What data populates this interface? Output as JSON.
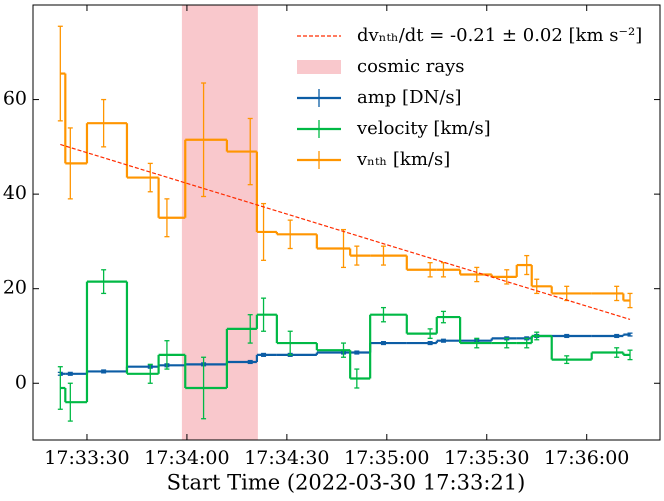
{
  "chart_data": {
    "type": "step",
    "xlabel": "Start Time (2022-03-30 17:33:21)",
    "xlim": [
      -7.2,
      181
    ],
    "xticks": [
      {
        "value": 9,
        "label": "17:33:30"
      },
      {
        "value": 39,
        "label": "17:34:00"
      },
      {
        "value": 69,
        "label": "17:34:30"
      },
      {
        "value": 99,
        "label": "17:35:00"
      },
      {
        "value": 129,
        "label": "17:35:30"
      },
      {
        "value": 159,
        "label": "17:36:00"
      }
    ],
    "ylim": [
      -12,
      80
    ],
    "yticks": [
      0,
      20,
      40,
      60
    ],
    "legend": "upper right",
    "x": [
      1,
      4,
      14,
      28,
      33,
      44,
      58,
      62,
      70,
      86,
      90,
      98,
      112,
      116,
      126,
      135,
      141,
      144,
      153,
      168,
      172
    ],
    "fit": {
      "label": "dvₙₜₕ/dt = -0.21 ± 0.02 [km s⁻²]",
      "color": "#ff2c00",
      "x": [
        1,
        172
      ],
      "y": [
        50.5,
        13.5
      ]
    },
    "span": {
      "label": "cosmic rays",
      "color": "#f7b6bb",
      "x": [
        37.5,
        60.3
      ]
    },
    "series": [
      {
        "name": "amp [DN/s]",
        "color": "#0c5da5",
        "values": [
          2,
          2,
          2.5,
          3.5,
          3.8,
          4,
          4.5,
          6,
          6,
          6.5,
          6.5,
          8.5,
          8.5,
          9,
          9,
          9.5,
          9.5,
          10,
          10,
          10,
          10.3
        ],
        "errors": [
          0.3,
          0.3,
          0.3,
          0.3,
          0.3,
          0.3,
          0.3,
          0.3,
          0.3,
          0.3,
          0.3,
          0.3,
          0.3,
          0.3,
          0.3,
          0.3,
          0.3,
          0.3,
          0.3,
          0.3,
          0.3
        ]
      },
      {
        "name": "velocity [km/s]",
        "color": "#00b945",
        "values": [
          -1,
          -4,
          21.5,
          2,
          6,
          -1,
          11.5,
          14.5,
          8.5,
          7,
          1,
          14.5,
          10.5,
          14,
          8.5,
          8.5,
          8.5,
          10,
          5,
          6.5,
          6
        ],
        "errors": [
          4.5,
          4,
          2.5,
          2,
          3,
          6.5,
          3,
          3.5,
          2.5,
          1.5,
          2,
          1.5,
          1,
          1.2,
          1,
          1,
          1,
          0.8,
          0.8,
          1,
          1
        ]
      },
      {
        "name": "vₙₜₕ [km/s]",
        "color": "#ff9500",
        "values": [
          65.5,
          46.5,
          55,
          43.5,
          35,
          51.5,
          49,
          32,
          31.5,
          28.5,
          27,
          27,
          24,
          24,
          23,
          22.5,
          25,
          20.5,
          19,
          19,
          17.5
        ],
        "errors": [
          10,
          7.5,
          5,
          3,
          4,
          12,
          7,
          6,
          3,
          4,
          2,
          2,
          1.5,
          1.5,
          1.5,
          1.5,
          2,
          1.5,
          1.5,
          1.5,
          1.5
        ]
      }
    ]
  }
}
